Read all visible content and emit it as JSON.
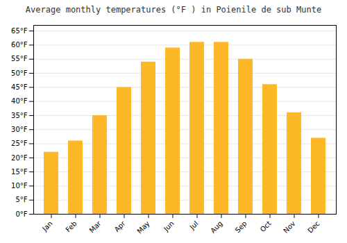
{
  "chart_data": {
    "type": "bar",
    "title": "Average monthly temperatures (°F ) in Poienile de sub Munte",
    "categories": [
      "Jan",
      "Feb",
      "Mar",
      "Apr",
      "May",
      "Jun",
      "Jul",
      "Aug",
      "Sep",
      "Oct",
      "Nov",
      "Dec"
    ],
    "values": [
      22,
      26,
      35,
      45,
      54,
      59,
      61,
      61,
      55,
      46,
      36,
      27
    ],
    "color": "#FDB827",
    "ylim": [
      0,
      67
    ],
    "yticks": [
      {
        "value": 0,
        "label": "0°F"
      },
      {
        "value": 5,
        "label": "5°F"
      },
      {
        "value": 10,
        "label": "10°F"
      },
      {
        "value": 15,
        "label": "15°F"
      },
      {
        "value": 20,
        "label": "20°F"
      },
      {
        "value": 25,
        "label": "25°F"
      },
      {
        "value": 30,
        "label": "30°F"
      },
      {
        "value": 35,
        "label": "35°F"
      },
      {
        "value": 40,
        "label": "40°F"
      },
      {
        "value": 45,
        "label": "45°F"
      },
      {
        "value": 50,
        "label": "50°F"
      },
      {
        "value": 55,
        "label": "55°F"
      },
      {
        "value": 60,
        "label": "60°F"
      },
      {
        "value": 65,
        "label": "65°F"
      }
    ],
    "grid": true
  }
}
